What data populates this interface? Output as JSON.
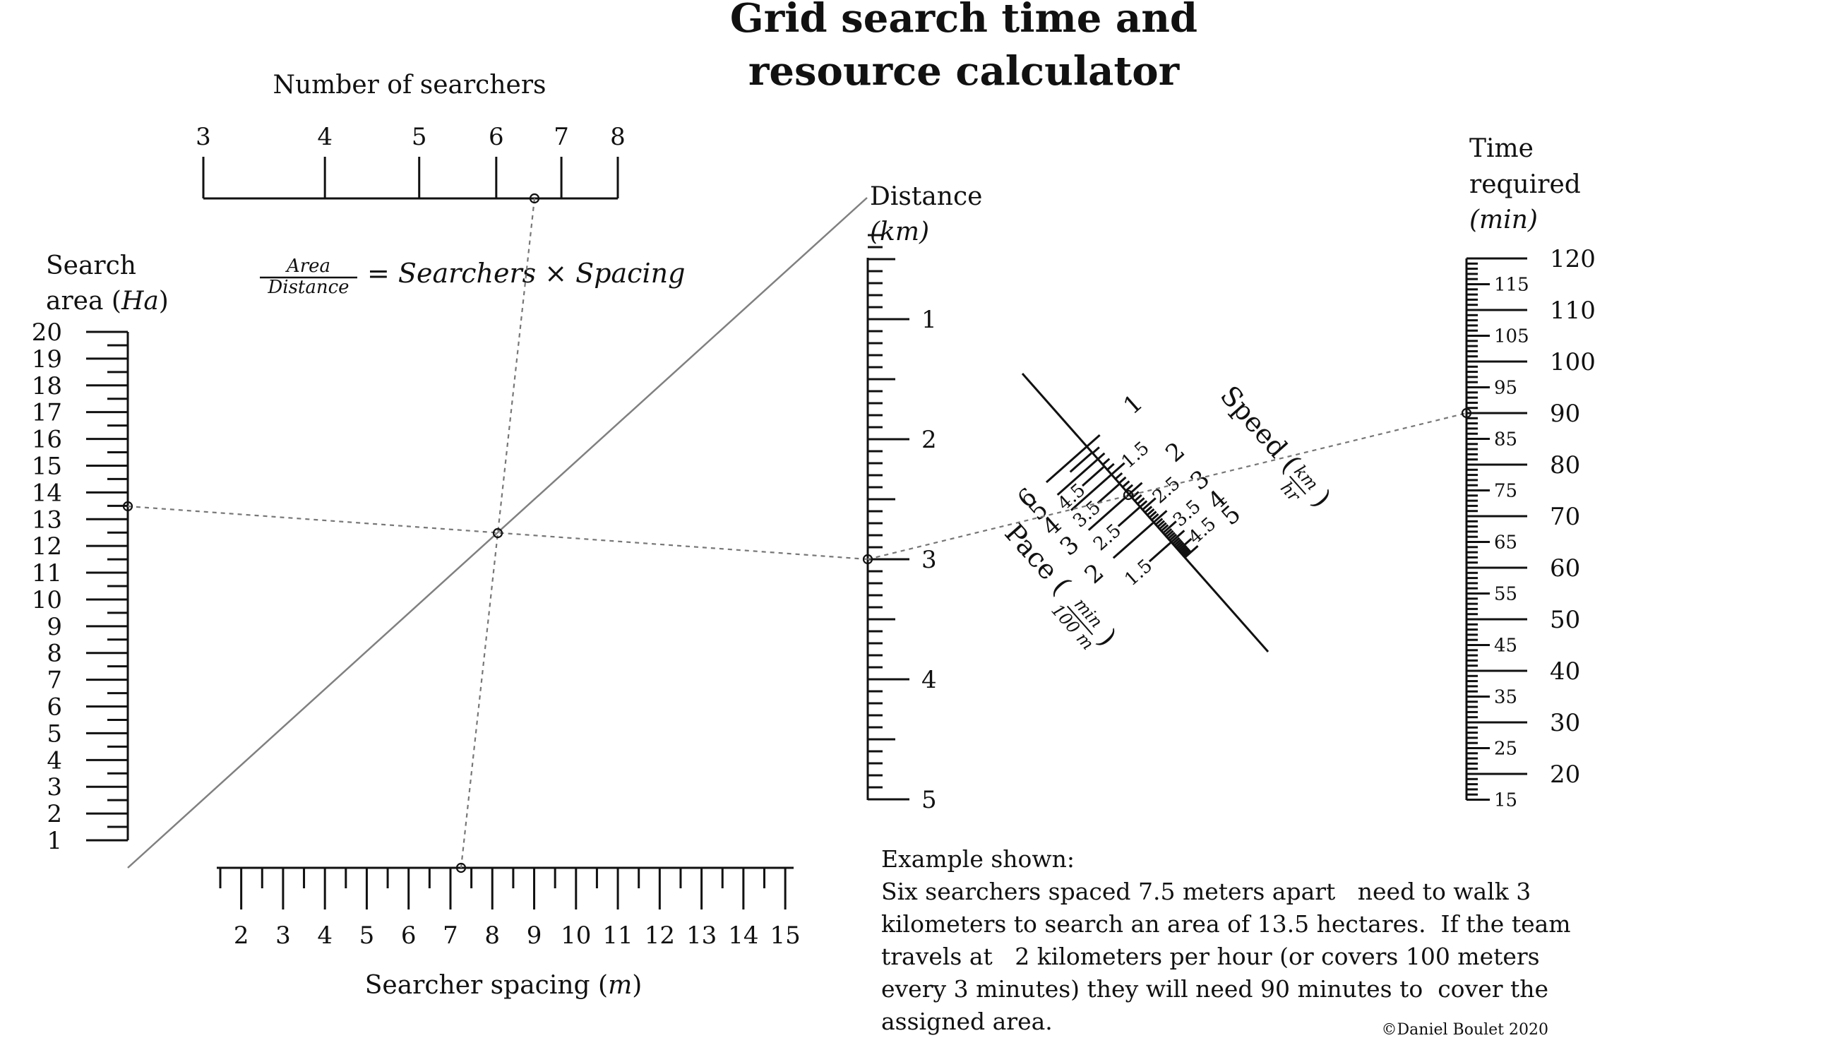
{
  "title_line1": "Grid search time and",
  "title_line2": "resource calculator",
  "searchers": {
    "label": "Number of searchers",
    "ticks": [
      "3",
      "4",
      "5",
      "6",
      "7",
      "8"
    ],
    "values": [
      3,
      4,
      5,
      6,
      7,
      8
    ]
  },
  "formula": {
    "numerator": "Area",
    "denominator": "Distance",
    "rhs": "= Searchers × Spacing"
  },
  "area": {
    "label_line1": "Search",
    "label_line2": "area (",
    "label_var": "Ha",
    "label_close": ")",
    "ticks": [
      "20",
      "19",
      "18",
      "17",
      "16",
      "15",
      "14",
      "13",
      "12",
      "11",
      "10",
      "9",
      "8",
      "7",
      "6",
      "5",
      "4",
      "3",
      "2",
      "1"
    ]
  },
  "spacing": {
    "label": "Searcher spacing (",
    "label_var": "m",
    "label_close": ")",
    "ticks": [
      "2",
      "3",
      "4",
      "5",
      "6",
      "7",
      "8",
      "9",
      "10",
      "11",
      "12",
      "13",
      "14",
      "15"
    ]
  },
  "distance": {
    "label_line1": "Distance",
    "label_line2": "(km)",
    "ticks": [
      "1",
      "2",
      "3",
      "4",
      "5"
    ]
  },
  "time": {
    "label_line1": "Time",
    "label_line2": "required",
    "label_line3": "(min)",
    "major_ticks": [
      "120",
      "110",
      "100",
      "90",
      "80",
      "70",
      "60",
      "50",
      "40",
      "30",
      "20"
    ],
    "minor_ticks": [
      "115",
      "105",
      "95",
      "85",
      "75",
      "65",
      "55",
      "45",
      "35",
      "25",
      "15"
    ]
  },
  "speed": {
    "label": "Speed (km/hr)",
    "label_word": "Speed (",
    "label_num": "km",
    "label_den": "hr",
    "label_close": ")",
    "ticks": [
      "1",
      "1.5",
      "2",
      "2.5",
      "3",
      "3.5",
      "4",
      "4.5",
      "5"
    ]
  },
  "pace": {
    "label": "Pace (min/100 m)",
    "label_word": "Pace (",
    "label_num": "min",
    "label_den": "100 m",
    "label_close": ")",
    "ticks": [
      "6",
      "5",
      "4.5",
      "4",
      "3.5",
      "3",
      "2.5",
      "2",
      "1.5"
    ]
  },
  "example": {
    "heading": "Example shown:",
    "lines": [
      "Six searchers spaced 7.5 meters apart   need to walk 3",
      "kilometers to search an area of 13.5 hectares.  If the team",
      "travels at   2 kilometers per hour (or covers 100 meters",
      "every 3 minutes) they will need 90 minutes to  cover the",
      "assigned area."
    ],
    "values": {
      "searchers": 6,
      "spacing_m": 7.5,
      "distance_km": 3,
      "area_ha": 13.5,
      "speed_kmh": 2,
      "pace_min_per_100m": 3,
      "time_min": 90
    }
  },
  "copyright": "©Daniel Boulet 2020"
}
